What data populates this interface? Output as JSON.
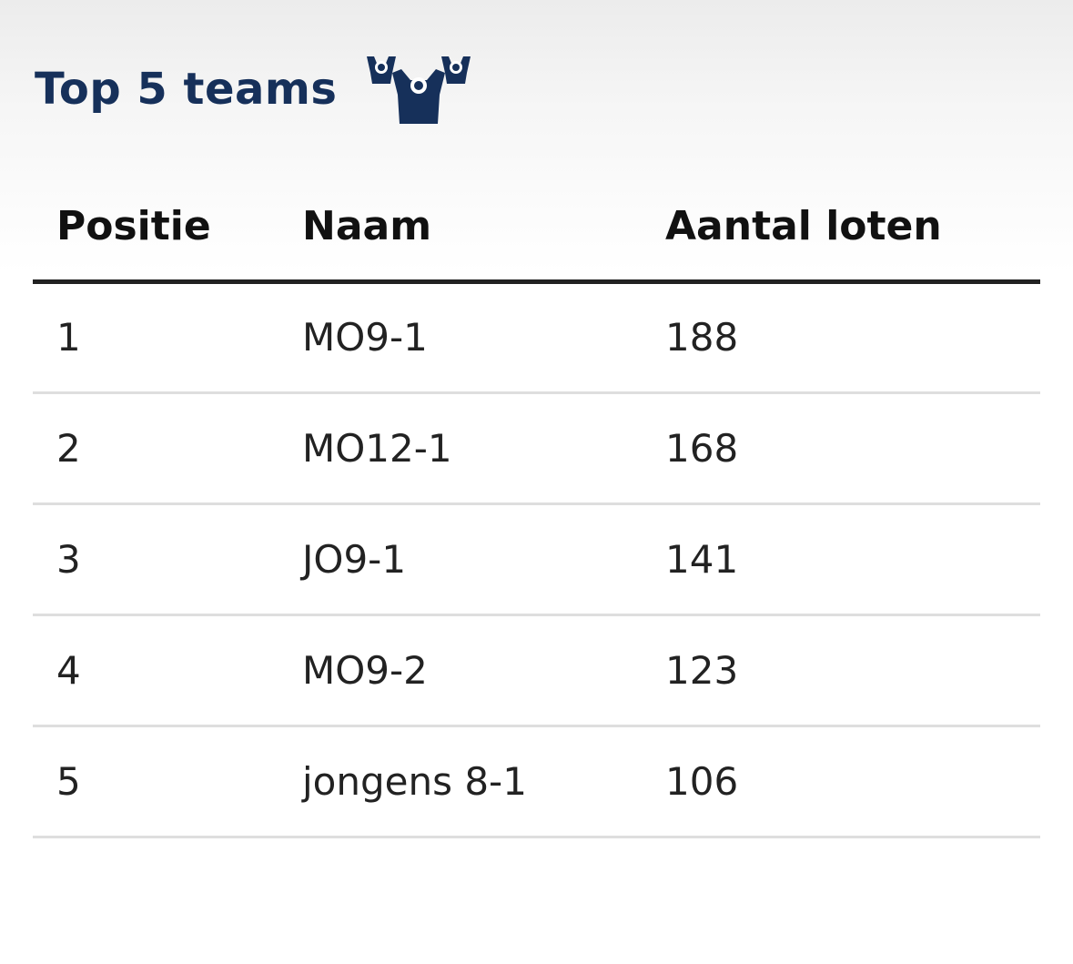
{
  "header": {
    "title": "Top 5 teams",
    "icon": "team-players-icon",
    "title_color": "#16305a"
  },
  "table": {
    "columns": [
      "Positie",
      "Naam",
      "Aantal loten"
    ],
    "rows": [
      {
        "position": "1",
        "name": "MO9-1",
        "tickets": "188"
      },
      {
        "position": "2",
        "name": "MO12-1",
        "tickets": "168"
      },
      {
        "position": "3",
        "name": "JO9-1",
        "tickets": "141"
      },
      {
        "position": "4",
        "name": "MO9-2",
        "tickets": "123"
      },
      {
        "position": "5",
        "name": "jongens 8-1",
        "tickets": "106"
      }
    ]
  }
}
